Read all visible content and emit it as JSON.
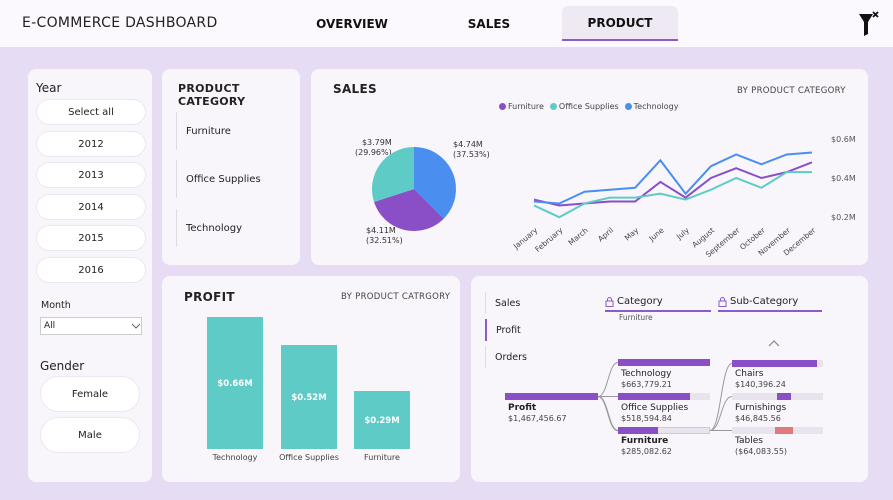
{
  "header": {
    "title": "E-COMMERCE DASHBOARD",
    "tabs": [
      {
        "label": "OVERVIEW",
        "active": false
      },
      {
        "label": "SALES",
        "active": false
      },
      {
        "label": "PRODUCT",
        "active": true
      }
    ],
    "filter_icon": "funnel-clear-icon"
  },
  "filters": {
    "year_title": "Year",
    "years": [
      "Select all",
      "2012",
      "2013",
      "2014",
      "2015",
      "2016"
    ],
    "month_title": "Month",
    "month_value": "All",
    "gender_title": "Gender",
    "genders": [
      "Female",
      "Male"
    ]
  },
  "category_panel": {
    "title": "PRODUCT CATEGORY",
    "items": [
      "Furniture",
      "Office Supplies",
      "Technology"
    ]
  },
  "sales_panel": {
    "title": "SALES",
    "subtitle": "BY PRODUCT CATEGORY",
    "legend": [
      {
        "name": "Furniture",
        "color": "#8a4fc7"
      },
      {
        "name": "Office Supplies",
        "color": "#5ecbc6"
      },
      {
        "name": "Technology",
        "color": "#4a8ff0"
      }
    ],
    "pie_labels": [
      {
        "value": "$3.79M",
        "pct": "(29.96%)"
      },
      {
        "value": "$4.74M",
        "pct": "(37.53%)"
      },
      {
        "value": "$4.11M",
        "pct": "(32.51%)"
      }
    ]
  },
  "profit_panel": {
    "title": "PROFIT",
    "subtitle": "BY PRODUCT CATRGORY"
  },
  "decomp_tree": {
    "tabs": [
      {
        "label": "Sales",
        "active": false
      },
      {
        "label": "Profit",
        "active": true
      },
      {
        "label": "Orders",
        "active": false
      }
    ],
    "levels": [
      {
        "label": "Category",
        "filter": "Furniture"
      },
      {
        "label": "Sub-Category",
        "filter": ""
      }
    ],
    "root": {
      "name": "Profit",
      "value": "$1,467,456.67"
    },
    "categories": [
      {
        "name": "Technology",
        "value": "$663,779.21",
        "fraction": 1.0,
        "selected": false
      },
      {
        "name": "Office Supplies",
        "value": "$518,594.84",
        "fraction": 0.78,
        "selected": false
      },
      {
        "name": "Furniture",
        "value": "$285,082.62",
        "fraction": 0.43,
        "selected": true
      }
    ],
    "subcategories": [
      {
        "name": "Chairs",
        "value": "$140,396.24",
        "fraction": 1.0,
        "color": "#8a4fc7"
      },
      {
        "name": "Furnishings",
        "value": "$46,845.56",
        "fraction": 0.33,
        "color": "#8a4fc7"
      },
      {
        "name": "Tables",
        "value": "($64,083.55)",
        "fraction": 0.46,
        "color": "#e07a7a"
      }
    ],
    "up_icon": "chevron-up-icon",
    "lock_icon": "lock-icon"
  },
  "chart_data": [
    {
      "type": "pie",
      "title": "",
      "categories": [
        "Office Supplies",
        "Technology",
        "Furniture"
      ],
      "values": [
        3.79,
        4.74,
        4.11
      ],
      "percents": [
        29.96,
        37.53,
        32.51
      ],
      "unit": "$M",
      "colors": [
        "#5ecbc6",
        "#4a8ff0",
        "#8a4fc7"
      ]
    },
    {
      "type": "line",
      "title": "",
      "categories": [
        "January",
        "February",
        "March",
        "April",
        "May",
        "June",
        "July",
        "August",
        "September",
        "October",
        "November",
        "December"
      ],
      "series": [
        {
          "name": "Furniture",
          "color": "#8a4fc7",
          "values": [
            0.29,
            0.26,
            0.27,
            0.28,
            0.28,
            0.38,
            0.3,
            0.4,
            0.45,
            0.4,
            0.43,
            0.48
          ]
        },
        {
          "name": "Office Supplies",
          "color": "#5ecbc6",
          "values": [
            0.26,
            0.2,
            0.27,
            0.3,
            0.3,
            0.32,
            0.29,
            0.34,
            0.4,
            0.35,
            0.43,
            0.43
          ]
        },
        {
          "name": "Technology",
          "color": "#4a8ff0",
          "values": [
            0.28,
            0.27,
            0.33,
            0.34,
            0.35,
            0.49,
            0.32,
            0.46,
            0.52,
            0.47,
            0.52,
            0.53
          ]
        }
      ],
      "ylim": [
        0.15,
        0.65
      ],
      "yticks": [
        0.2,
        0.4,
        0.6
      ],
      "ytick_labels": [
        "$0.2M",
        "$0.4M",
        "$0.6M"
      ],
      "y_axis_side": "right",
      "grid": false
    },
    {
      "type": "bar",
      "title": "",
      "categories": [
        "Technology",
        "Office Supplies",
        "Furniture"
      ],
      "values": [
        0.66,
        0.52,
        0.29
      ],
      "value_labels": [
        "$0.66M",
        "$0.52M",
        "$0.29M"
      ],
      "ylim": [
        0,
        0.7
      ],
      "color": "#5ecbc6"
    }
  ]
}
